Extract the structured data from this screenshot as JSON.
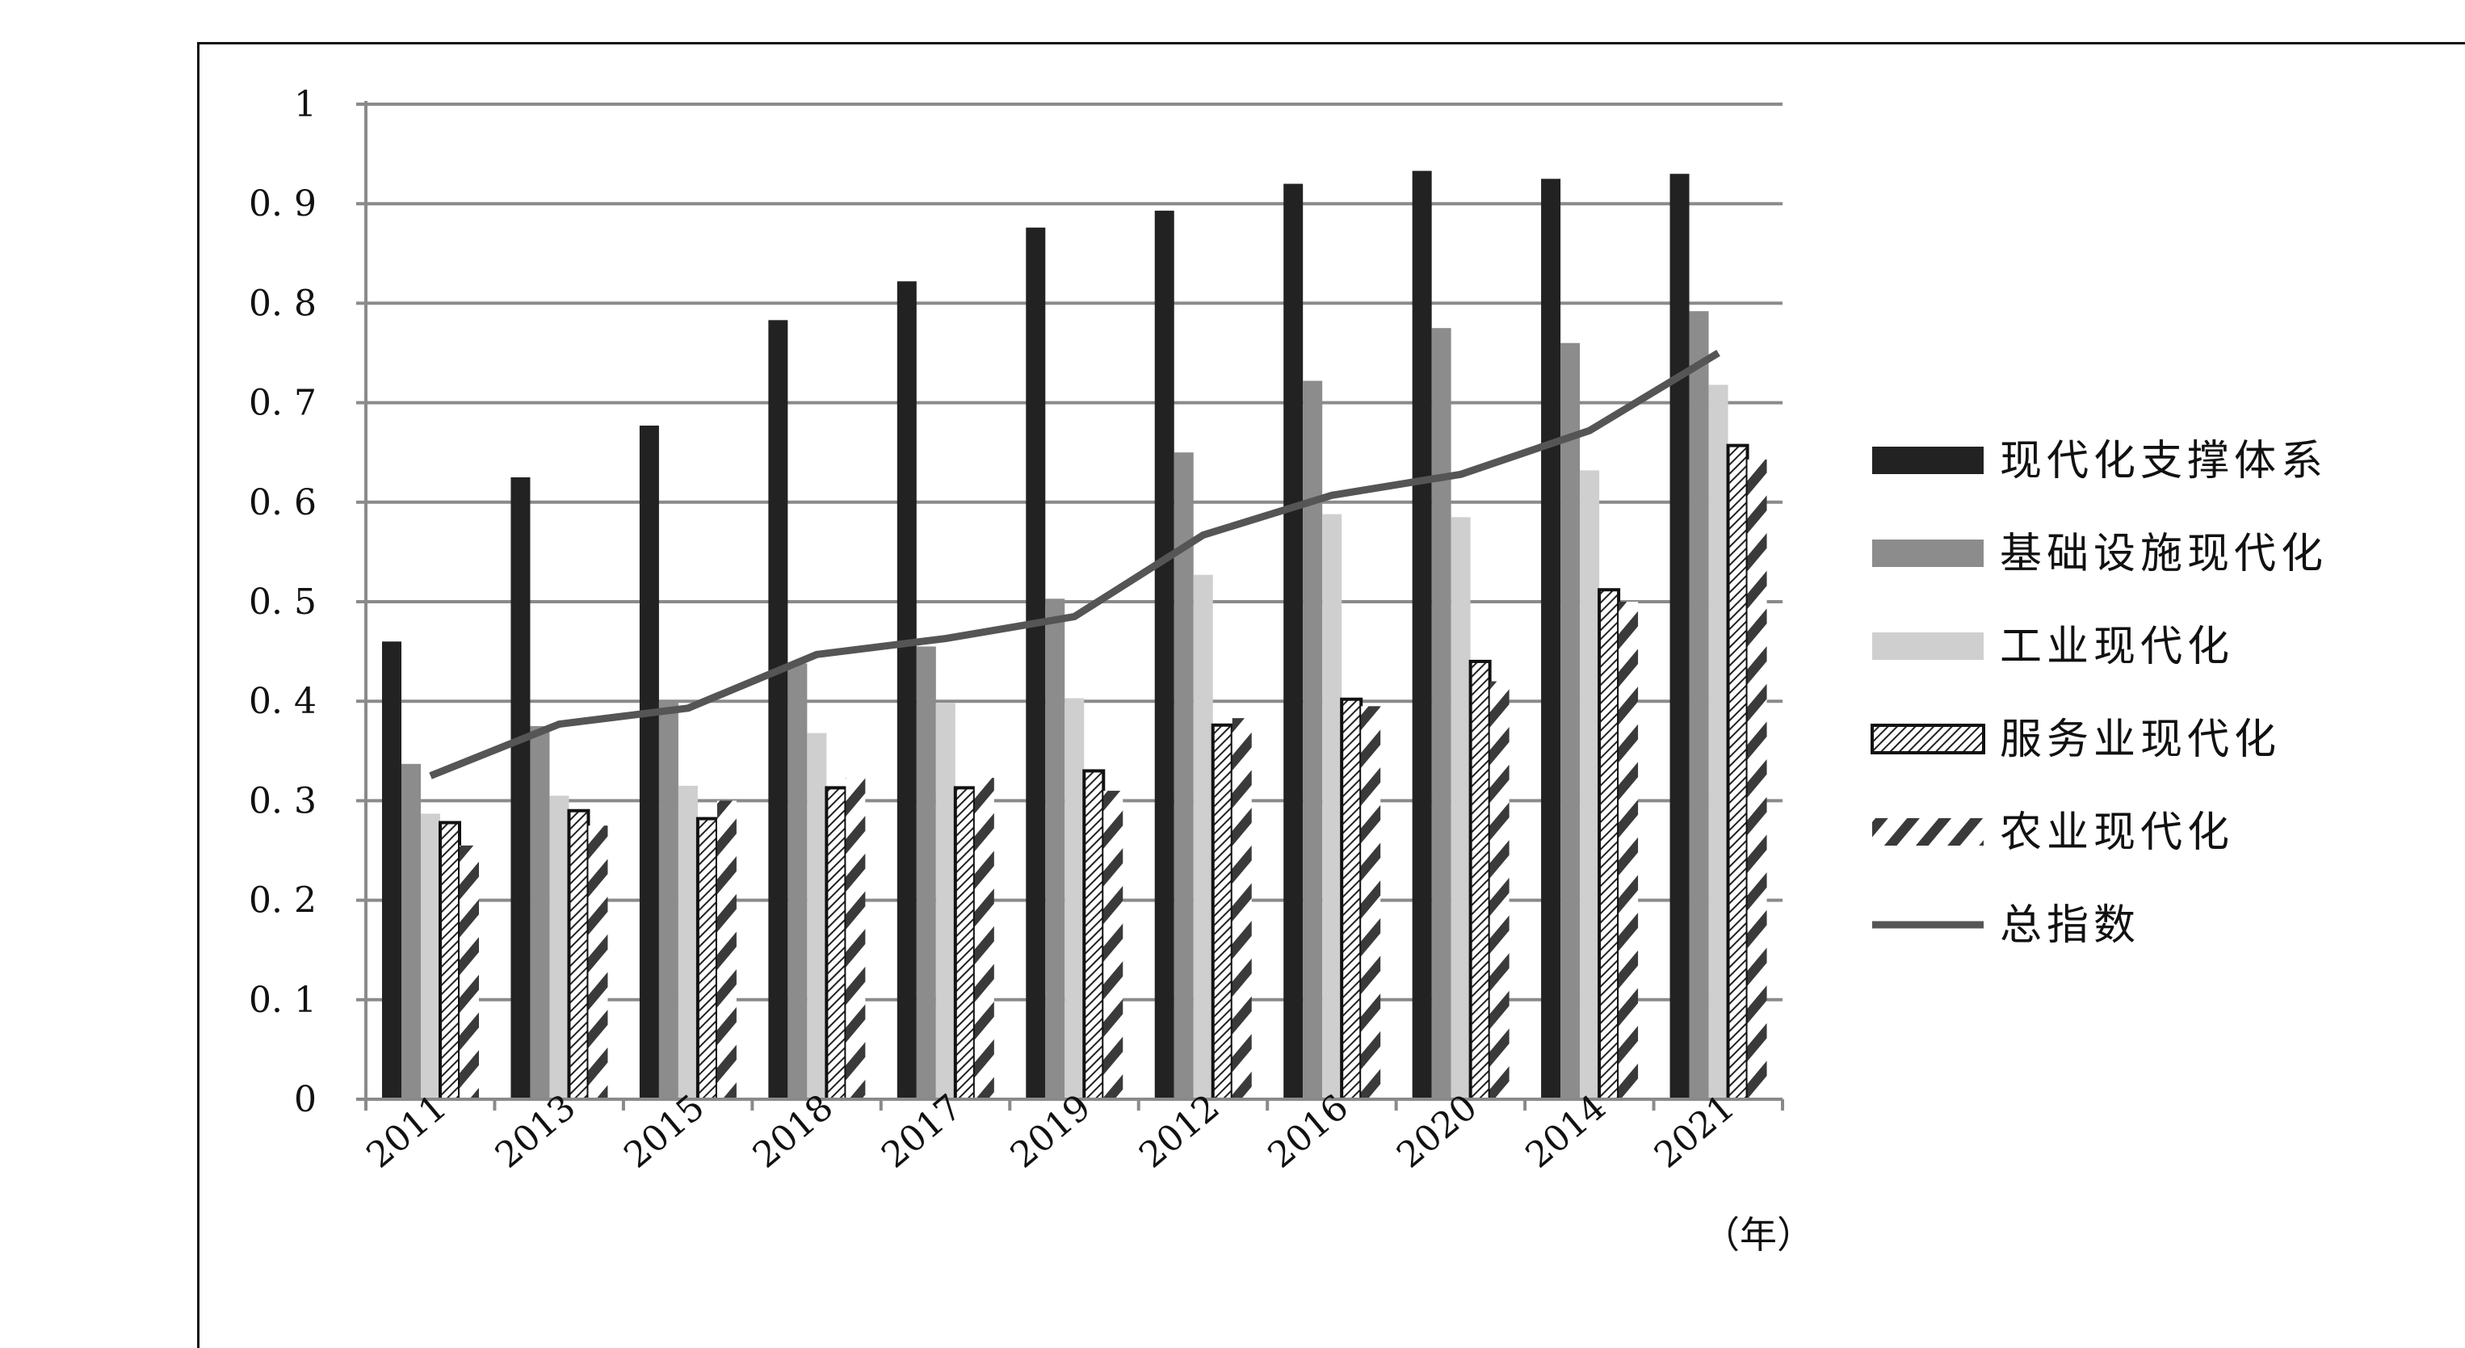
{
  "chart_data": {
    "type": "bar",
    "title": "",
    "xlabel": "",
    "x_unit": "（年）",
    "ylabel": "",
    "ylim": [
      0,
      1
    ],
    "yticks": [
      "0",
      "0. 1",
      "0. 2",
      "0. 3",
      "0. 4",
      "0. 5",
      "0. 6",
      "0. 7",
      "0. 8",
      "0. 9",
      "1"
    ],
    "grid": true,
    "legend_position": "right",
    "categories": [
      "2011",
      "2013",
      "2015",
      "2018",
      "2017",
      "2019",
      "2012",
      "2016",
      "2020",
      "2014",
      "2021"
    ],
    "series": [
      {
        "name": "现代化支撑体系",
        "type": "bar",
        "style": "solid-black",
        "color": "#222222",
        "values": [
          0.46,
          0.625,
          0.677,
          0.783,
          0.822,
          0.876,
          0.893,
          0.92,
          0.933,
          0.925,
          0.93
        ]
      },
      {
        "name": "基础设施现代化",
        "type": "bar",
        "style": "solid-dark-gray",
        "color": "#8c8c8c",
        "values": [
          0.337,
          0.375,
          0.4,
          0.438,
          0.455,
          0.503,
          0.65,
          0.722,
          0.775,
          0.76,
          0.792
        ]
      },
      {
        "name": "工业现代化",
        "type": "bar",
        "style": "solid-light-gray",
        "color": "#cfcfcf",
        "values": [
          0.287,
          0.305,
          0.315,
          0.368,
          0.398,
          0.403,
          0.527,
          0.588,
          0.585,
          0.632,
          0.718
        ]
      },
      {
        "name": "服务业现代化",
        "type": "bar",
        "style": "fine-hatch-outlined",
        "color": "#111111",
        "values": [
          0.278,
          0.29,
          0.282,
          0.313,
          0.313,
          0.33,
          0.376,
          0.402,
          0.44,
          0.512,
          0.657
        ]
      },
      {
        "name": "农业现代化",
        "type": "bar",
        "style": "bold-diagonal-stripes",
        "color": "#444444",
        "values": [
          0.255,
          0.275,
          0.3,
          0.323,
          0.323,
          0.31,
          0.383,
          0.395,
          0.42,
          0.5,
          0.643
        ]
      },
      {
        "name": "总指数",
        "type": "line",
        "color": "#555555",
        "values": [
          0.325,
          0.377,
          0.393,
          0.447,
          0.463,
          0.485,
          0.567,
          0.607,
          0.628,
          0.672,
          0.75
        ]
      }
    ]
  }
}
